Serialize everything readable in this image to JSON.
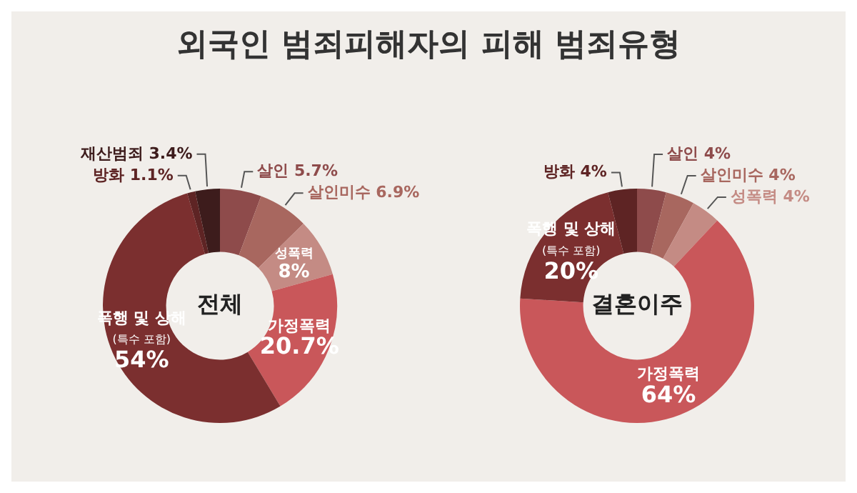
{
  "chart_data": [
    {
      "type": "donut",
      "title": "외국인 범죄피해자의 피해 범죄유형",
      "annotations": [
        "전체"
      ],
      "categories": [
        "살인",
        "살인미수",
        "성폭력",
        "가정폭력",
        "폭행 및 상해 (특수 포함)",
        "방화",
        "재산범죄"
      ],
      "values": [
        5.7,
        6.9,
        8,
        20.7,
        54,
        1.1,
        3.4
      ],
      "value_labels": [
        "5.7%",
        "6.9%",
        "8%",
        "20.7%",
        "54%",
        "1.1%",
        "3.4%"
      ],
      "colors": [
        "#8e4b4b",
        "#a8675f",
        "#c48b84",
        "#c9575a",
        "#7b2f2f",
        "#5e2424",
        "#3d1c1c"
      ]
    },
    {
      "type": "donut",
      "annotations": [
        "결혼이주"
      ],
      "categories": [
        "살인",
        "살인미수",
        "성폭력",
        "가정폭력",
        "폭행 및 상해 (특수 포함)",
        "방화"
      ],
      "values": [
        4,
        4,
        4,
        64,
        20,
        4
      ],
      "value_labels": [
        "4%",
        "4%",
        "4%",
        "64%",
        "20%",
        "4%"
      ],
      "colors": [
        "#8e4b4b",
        "#a8675f",
        "#c48b84",
        "#c9575a",
        "#7b2f2f",
        "#5e2424"
      ]
    }
  ]
}
